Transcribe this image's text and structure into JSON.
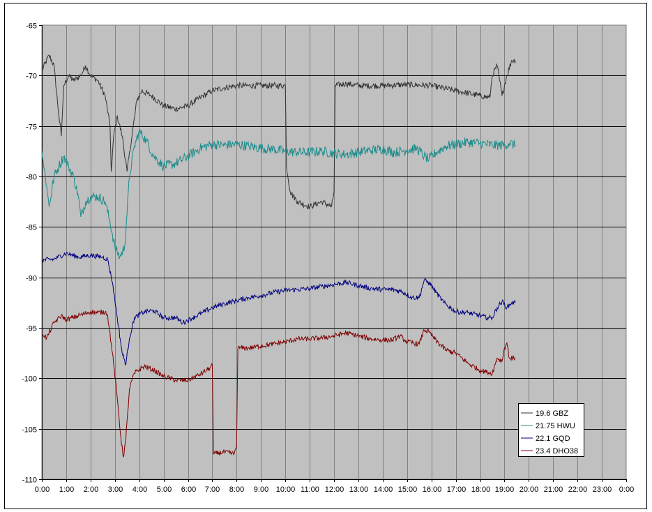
{
  "chart_data": {
    "type": "line",
    "title": "",
    "xlabel": "",
    "ylabel": "",
    "xlim": [
      0,
      24
    ],
    "ylim": [
      -110,
      -65
    ],
    "xticks": [
      "0:00",
      "1:00",
      "2:00",
      "3:00",
      "4:00",
      "5:00",
      "6:00",
      "7:00",
      "8:00",
      "9:00",
      "10:00",
      "11:00",
      "12:00",
      "13:00",
      "14:00",
      "15:00",
      "16:00",
      "17:00",
      "18:00",
      "19:00",
      "20:00",
      "21:00",
      "22:00",
      "23:00",
      "0:00"
    ],
    "yticks": [
      "-65",
      "-70",
      "-75",
      "-80",
      "-85",
      "-90",
      "-95",
      "-100",
      "-105",
      "-110"
    ],
    "grid": true,
    "plot_background": "#c0c0c0",
    "legend_position": "bottom-right",
    "series": [
      {
        "name": "19.6 GBZ",
        "color": "#333333",
        "noise": 0.3,
        "points": [
          [
            0,
            -69.5
          ],
          [
            0.3,
            -68
          ],
          [
            0.5,
            -69
          ],
          [
            0.7,
            -74
          ],
          [
            0.8,
            -76
          ],
          [
            0.9,
            -71
          ],
          [
            1.1,
            -70
          ],
          [
            1.3,
            -70.5
          ],
          [
            1.6,
            -70
          ],
          [
            1.8,
            -69
          ],
          [
            2.0,
            -70
          ],
          [
            2.3,
            -70.5
          ],
          [
            2.6,
            -72
          ],
          [
            2.8,
            -75
          ],
          [
            2.85,
            -79.5
          ],
          [
            2.95,
            -76
          ],
          [
            3.1,
            -74
          ],
          [
            3.3,
            -76
          ],
          [
            3.5,
            -79.5
          ],
          [
            3.7,
            -76
          ],
          [
            3.9,
            -72.5
          ],
          [
            4.1,
            -71.5
          ],
          [
            4.5,
            -72
          ],
          [
            5.0,
            -73
          ],
          [
            5.5,
            -73.3
          ],
          [
            6.0,
            -73
          ],
          [
            6.5,
            -72.2
          ],
          [
            7.0,
            -71.5
          ],
          [
            7.5,
            -71.2
          ],
          [
            8.0,
            -71
          ],
          [
            8.5,
            -71
          ],
          [
            9.0,
            -71
          ],
          [
            9.5,
            -71
          ],
          [
            10.0,
            -71
          ],
          [
            10.05,
            -79
          ],
          [
            10.2,
            -81.5
          ],
          [
            10.5,
            -82.5
          ],
          [
            11.0,
            -83
          ],
          [
            11.5,
            -82.5
          ],
          [
            11.9,
            -83
          ],
          [
            12.0,
            -81.5
          ],
          [
            12.05,
            -71
          ],
          [
            12.5,
            -70.8
          ],
          [
            13.0,
            -71
          ],
          [
            14.0,
            -71
          ],
          [
            15.0,
            -70.9
          ],
          [
            16.0,
            -71
          ],
          [
            17.0,
            -71.5
          ],
          [
            18.0,
            -72
          ],
          [
            18.4,
            -72.2
          ],
          [
            18.5,
            -70
          ],
          [
            18.7,
            -69
          ],
          [
            18.9,
            -72
          ],
          [
            19.1,
            -70
          ],
          [
            19.3,
            -68.5
          ],
          [
            19.45,
            -68.5
          ]
        ]
      },
      {
        "name": "21.75 HWU",
        "color": "#1a8c8c",
        "noise": 0.5,
        "points": [
          [
            0,
            -77.5
          ],
          [
            0.2,
            -81
          ],
          [
            0.3,
            -83
          ],
          [
            0.5,
            -80
          ],
          [
            0.7,
            -79
          ],
          [
            0.9,
            -78
          ],
          [
            1.1,
            -79
          ],
          [
            1.3,
            -80
          ],
          [
            1.5,
            -82
          ],
          [
            1.6,
            -84
          ],
          [
            1.8,
            -82.5
          ],
          [
            2.0,
            -82
          ],
          [
            2.3,
            -82
          ],
          [
            2.6,
            -82.5
          ],
          [
            2.8,
            -84.5
          ],
          [
            3.0,
            -87
          ],
          [
            3.2,
            -88
          ],
          [
            3.4,
            -87
          ],
          [
            3.6,
            -80
          ],
          [
            3.8,
            -77
          ],
          [
            4.0,
            -75.5
          ],
          [
            4.3,
            -76.5
          ],
          [
            4.6,
            -78
          ],
          [
            5.0,
            -79
          ],
          [
            5.5,
            -78.7
          ],
          [
            6.0,
            -78
          ],
          [
            6.5,
            -77.2
          ],
          [
            7.0,
            -76.8
          ],
          [
            7.5,
            -76.9
          ],
          [
            8.0,
            -76.8
          ],
          [
            8.5,
            -77
          ],
          [
            9.0,
            -77.2
          ],
          [
            9.5,
            -77.3
          ],
          [
            10.0,
            -77.5
          ],
          [
            10.5,
            -77.6
          ],
          [
            11.0,
            -77.6
          ],
          [
            11.5,
            -77.5
          ],
          [
            12.0,
            -77.7
          ],
          [
            12.5,
            -77.8
          ],
          [
            13.0,
            -77.6
          ],
          [
            13.5,
            -77.4
          ],
          [
            14.0,
            -77.3
          ],
          [
            14.5,
            -77.6
          ],
          [
            15.0,
            -77.4
          ],
          [
            15.4,
            -77.2
          ],
          [
            15.7,
            -78
          ],
          [
            15.9,
            -78.3
          ],
          [
            16.2,
            -77.6
          ],
          [
            16.6,
            -77
          ],
          [
            17.0,
            -76.8
          ],
          [
            17.5,
            -76.6
          ],
          [
            18.0,
            -76.7
          ],
          [
            18.5,
            -76.9
          ],
          [
            19.0,
            -76.9
          ],
          [
            19.2,
            -76.7
          ],
          [
            19.45,
            -76.9
          ]
        ]
      },
      {
        "name": "22.1 GQD",
        "color": "#00007f",
        "noise": 0.25,
        "points": [
          [
            0,
            -88.3
          ],
          [
            0.5,
            -88.2
          ],
          [
            1.0,
            -87.6
          ],
          [
            1.5,
            -88
          ],
          [
            2.0,
            -87.8
          ],
          [
            2.5,
            -88
          ],
          [
            2.7,
            -88.2
          ],
          [
            2.9,
            -90.5
          ],
          [
            3.1,
            -94
          ],
          [
            3.3,
            -97.5
          ],
          [
            3.45,
            -98.6
          ],
          [
            3.6,
            -96
          ],
          [
            3.8,
            -94
          ],
          [
            4.2,
            -93.4
          ],
          [
            4.6,
            -93.3
          ],
          [
            5.0,
            -94
          ],
          [
            5.5,
            -94
          ],
          [
            5.8,
            -94.5
          ],
          [
            6.2,
            -94
          ],
          [
            6.6,
            -93.5
          ],
          [
            7.0,
            -93
          ],
          [
            7.5,
            -92.6
          ],
          [
            8.0,
            -92.3
          ],
          [
            8.5,
            -92
          ],
          [
            9.0,
            -91.8
          ],
          [
            9.5,
            -91.5
          ],
          [
            10.0,
            -91.3
          ],
          [
            10.5,
            -91.2
          ],
          [
            11.0,
            -91.1
          ],
          [
            11.5,
            -90.9
          ],
          [
            12.0,
            -90.7
          ],
          [
            12.5,
            -90.5
          ],
          [
            13.0,
            -90.8
          ],
          [
            13.5,
            -91.1
          ],
          [
            14.0,
            -91.2
          ],
          [
            14.4,
            -91.2
          ],
          [
            14.8,
            -91.4
          ],
          [
            15.2,
            -92
          ],
          [
            15.5,
            -92
          ],
          [
            15.7,
            -90.3
          ],
          [
            15.9,
            -90.5
          ],
          [
            16.2,
            -91.5
          ],
          [
            16.5,
            -92.5
          ],
          [
            17.0,
            -93.4
          ],
          [
            17.5,
            -93.5
          ],
          [
            18.0,
            -93.8
          ],
          [
            18.3,
            -94
          ],
          [
            18.5,
            -94
          ],
          [
            18.7,
            -93
          ],
          [
            18.9,
            -92.4
          ],
          [
            19.1,
            -93
          ],
          [
            19.3,
            -92.5
          ],
          [
            19.45,
            -92.5
          ]
        ]
      },
      {
        "name": "23.4 DHO38",
        "color": "#7f0000",
        "noise": 0.25,
        "points": [
          [
            0,
            -95.5
          ],
          [
            0.2,
            -96
          ],
          [
            0.5,
            -94.5
          ],
          [
            0.8,
            -93.8
          ],
          [
            1.0,
            -94.2
          ],
          [
            1.5,
            -93.8
          ],
          [
            2.0,
            -93.4
          ],
          [
            2.3,
            -93.5
          ],
          [
            2.6,
            -93.4
          ],
          [
            2.7,
            -93.7
          ],
          [
            2.9,
            -97.5
          ],
          [
            3.1,
            -102
          ],
          [
            3.25,
            -106
          ],
          [
            3.35,
            -107.8
          ],
          [
            3.45,
            -106
          ],
          [
            3.6,
            -101
          ],
          [
            3.8,
            -99.5
          ],
          [
            4.2,
            -98.8
          ],
          [
            4.6,
            -99.2
          ],
          [
            5.0,
            -99.8
          ],
          [
            5.5,
            -100.2
          ],
          [
            6.0,
            -100.2
          ],
          [
            6.5,
            -99.6
          ],
          [
            6.9,
            -99
          ],
          [
            7.0,
            -98.6
          ],
          [
            7.05,
            -107.5
          ],
          [
            7.5,
            -107.3
          ],
          [
            7.9,
            -107.5
          ],
          [
            8.0,
            -106.5
          ],
          [
            8.05,
            -97
          ],
          [
            8.5,
            -97
          ],
          [
            9.0,
            -96.8
          ],
          [
            9.5,
            -96.6
          ],
          [
            10.0,
            -96.4
          ],
          [
            10.5,
            -96.1
          ],
          [
            11.0,
            -96.1
          ],
          [
            11.5,
            -96
          ],
          [
            12.0,
            -95.8
          ],
          [
            12.5,
            -95.5
          ],
          [
            13.0,
            -95.8
          ],
          [
            13.5,
            -96.1
          ],
          [
            14.0,
            -96.2
          ],
          [
            14.4,
            -96.2
          ],
          [
            14.7,
            -95.8
          ],
          [
            15.0,
            -96.4
          ],
          [
            15.5,
            -96.6
          ],
          [
            15.7,
            -95.2
          ],
          [
            15.9,
            -95.4
          ],
          [
            16.2,
            -96.3
          ],
          [
            16.6,
            -97.2
          ],
          [
            17.0,
            -97.5
          ],
          [
            17.5,
            -98.5
          ],
          [
            18.0,
            -99.2
          ],
          [
            18.3,
            -99.4
          ],
          [
            18.5,
            -99.5
          ],
          [
            18.7,
            -98
          ],
          [
            18.9,
            -98.3
          ],
          [
            19.0,
            -97
          ],
          [
            19.1,
            -96.5
          ],
          [
            19.2,
            -98
          ],
          [
            19.45,
            -98
          ]
        ]
      }
    ]
  }
}
